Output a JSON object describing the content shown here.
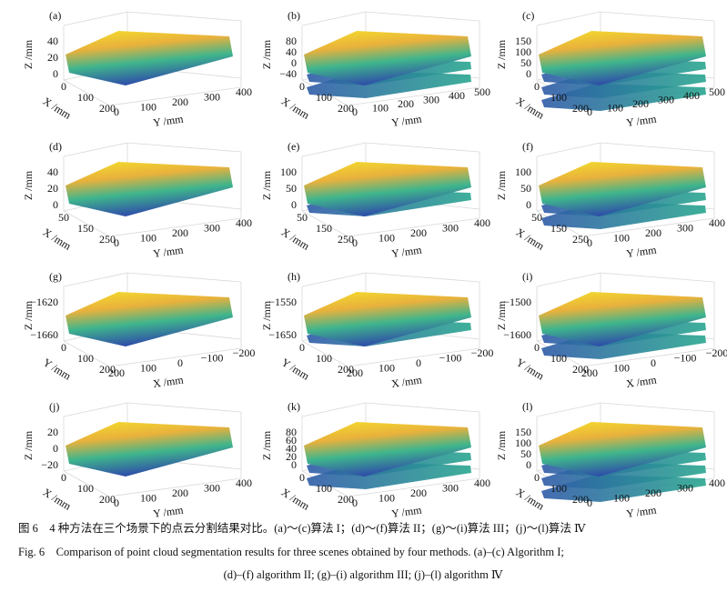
{
  "panels": [
    {
      "label": "(a)",
      "z_label": "Z /mm",
      "z_ticks": [
        "40",
        "20",
        "0"
      ],
      "depth_label": "X /mm",
      "depth_ticks": [
        "0",
        "100",
        "200"
      ],
      "width_label": "Y /mm",
      "width_ticks": [
        "0",
        "100",
        "200",
        "300",
        "400"
      ]
    },
    {
      "label": "(b)",
      "z_label": "Z /mm",
      "z_ticks": [
        "80",
        "40",
        "0",
        "−40"
      ],
      "depth_label": "X /mm",
      "depth_ticks": [
        "0",
        "100",
        "200"
      ],
      "width_label": "Y /mm",
      "width_ticks": [
        "0",
        "100",
        "200",
        "300",
        "400",
        "500"
      ]
    },
    {
      "label": "(c)",
      "z_label": "Z /mm",
      "z_ticks": [
        "150",
        "100",
        "50",
        "0"
      ],
      "depth_label": "X /mm",
      "depth_ticks": [
        "0",
        "100",
        "200"
      ],
      "width_label": "Y /mm",
      "width_ticks": [
        "0",
        "100",
        "200",
        "300",
        "400",
        "500"
      ]
    },
    {
      "label": "(d)",
      "z_label": "Z /mm",
      "z_ticks": [
        "40",
        "20",
        "0"
      ],
      "depth_label": "X /mm",
      "depth_ticks": [
        "50",
        "150",
        "250"
      ],
      "width_label": "Y /mm",
      "width_ticks": [
        "0",
        "100",
        "200",
        "300",
        "400"
      ]
    },
    {
      "label": "(e)",
      "z_label": "Z /mm",
      "z_ticks": [
        "100",
        "50",
        "0"
      ],
      "depth_label": "X /mm",
      "depth_ticks": [
        "50",
        "150",
        "250"
      ],
      "width_label": "Y /mm",
      "width_ticks": [
        "0",
        "100",
        "200",
        "300",
        "400"
      ]
    },
    {
      "label": "(f)",
      "z_label": "Z /mm",
      "z_ticks": [
        "100",
        "50",
        "0"
      ],
      "depth_label": "X /mm",
      "depth_ticks": [
        "50",
        "150",
        "250"
      ],
      "width_label": "Y /mm",
      "width_ticks": [
        "0",
        "100",
        "200",
        "300",
        "400"
      ]
    },
    {
      "label": "(g)",
      "z_label": "Z /mm",
      "z_ticks": [
        "−1620",
        "−1660"
      ],
      "depth_label": "Y /mm",
      "depth_ticks": [
        "0",
        "100",
        "200"
      ],
      "width_label": "X /mm",
      "width_ticks": [
        "200",
        "100",
        "0",
        "−100",
        "−200"
      ]
    },
    {
      "label": "(h)",
      "z_label": "Z /mm",
      "z_ticks": [
        "−1550",
        "−1650"
      ],
      "depth_label": "Y /mm",
      "depth_ticks": [
        "0",
        "100",
        "200"
      ],
      "width_label": "X /mm",
      "width_ticks": [
        "200",
        "100",
        "0",
        "−100",
        "−200"
      ]
    },
    {
      "label": "(i)",
      "z_label": "Z /mm",
      "z_ticks": [
        "−1500",
        "−1600"
      ],
      "depth_label": "Y /mm",
      "depth_ticks": [
        "0",
        "100",
        "200"
      ],
      "width_label": "X /mm",
      "width_ticks": [
        "200",
        "100",
        "0",
        "−100",
        "−200"
      ]
    },
    {
      "label": "(j)",
      "z_label": "Z /mm",
      "z_ticks": [
        "20",
        "0",
        "−20"
      ],
      "depth_label": "X /mm",
      "depth_ticks": [
        "0",
        "100",
        "200"
      ],
      "width_label": "Y /mm",
      "width_ticks": [
        "0",
        "100",
        "200",
        "300",
        "400"
      ]
    },
    {
      "label": "(k)",
      "z_label": "Z /mm",
      "z_ticks": [
        "80",
        "60",
        "40",
        "20",
        "0"
      ],
      "depth_label": "X /mm",
      "depth_ticks": [
        "0",
        "100",
        "200"
      ],
      "width_label": "Y /mm",
      "width_ticks": [
        "0",
        "100",
        "200",
        "300",
        "400"
      ]
    },
    {
      "label": "(l)",
      "z_label": "Z /mm",
      "z_ticks": [
        "150",
        "100",
        "50",
        "0"
      ],
      "depth_label": "X /mm",
      "depth_ticks": [
        "0",
        "100",
        "200"
      ],
      "width_label": "Y /mm",
      "width_ticks": [
        "0",
        "100",
        "200",
        "300",
        "400"
      ]
    }
  ],
  "caption": {
    "cn": "图 6　4 种方法在三个场景下的点云分割结果对比。(a)～(c)算法 I；(d)～(f)算法 II；(g)～(i)算法 III；(j)～(l)算法 Ⅳ",
    "en_1": "Fig. 6　Comparison of point cloud segmentation results for three scenes obtained by four methods. (a)–(c) Algorithm I;",
    "en_2": "(d)–(f) algorithm II; (g)–(i) algorithm III; (j)–(l) algorithm Ⅳ"
  }
}
